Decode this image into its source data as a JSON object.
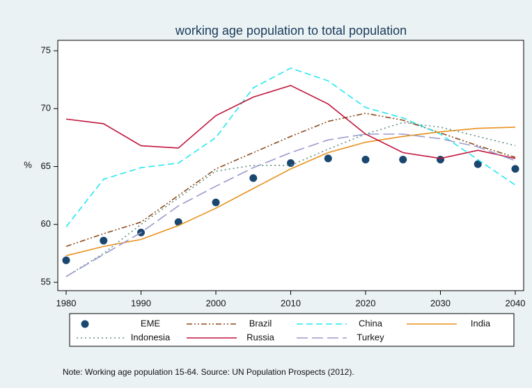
{
  "chart_data": {
    "type": "line",
    "title": "working age population to total population",
    "y_label": "%",
    "note": "Note: Working age population 15-64. Source: UN Population Prospects (2012).",
    "x": [
      1980,
      1985,
      1990,
      1995,
      2000,
      2005,
      2010,
      2015,
      2020,
      2025,
      2030,
      2035,
      2040
    ],
    "xlim": [
      1980,
      2040
    ],
    "xticks": [
      1980,
      1990,
      2000,
      2010,
      2020,
      2030,
      2040
    ],
    "ylim": [
      55,
      75
    ],
    "yticks": [
      55,
      60,
      65,
      70,
      75
    ],
    "grid": true,
    "legend": "bottom",
    "series": [
      {
        "name": "EME",
        "color": "#1a476f",
        "style": "markers",
        "values": [
          56.9,
          58.6,
          59.3,
          60.2,
          61.9,
          64.0,
          65.3,
          65.7,
          65.6,
          65.6,
          65.6,
          65.2,
          64.8
        ]
      },
      {
        "name": "Brazil",
        "color": "#8b4a1c",
        "style": "dashdotdot",
        "values": [
          58.1,
          59.2,
          60.2,
          62.5,
          64.8,
          66.2,
          67.6,
          68.9,
          69.6,
          69.0,
          67.9,
          66.8,
          65.8
        ]
      },
      {
        "name": "China",
        "color": "#22e8f0",
        "style": "dash",
        "values": [
          59.8,
          63.9,
          64.9,
          65.3,
          67.5,
          71.8,
          73.5,
          72.4,
          70.1,
          69.2,
          67.8,
          65.6,
          63.4
        ]
      },
      {
        "name": "India",
        "color": "#e8901c",
        "style": "solid",
        "values": [
          57.3,
          58.1,
          58.7,
          59.9,
          61.4,
          63.1,
          64.8,
          66.2,
          67.1,
          67.6,
          68.0,
          68.3,
          68.4
        ]
      },
      {
        "name": "Indonesia",
        "color": "#5f8f7f",
        "style": "dot",
        "values": [
          55.5,
          57.5,
          60.0,
          62.3,
          64.6,
          65.1,
          65.1,
          66.5,
          67.8,
          68.8,
          68.4,
          67.6,
          66.8
        ]
      },
      {
        "name": "Russia",
        "color": "#c0143c",
        "style": "solid",
        "values": [
          69.1,
          68.7,
          66.8,
          66.6,
          69.4,
          71.0,
          72.0,
          70.4,
          67.8,
          66.2,
          65.7,
          66.4,
          65.7
        ]
      },
      {
        "name": "Turkey",
        "color": "#9a9acd",
        "style": "longdash",
        "values": [
          55.5,
          57.4,
          59.3,
          61.6,
          63.3,
          64.9,
          66.2,
          67.3,
          67.8,
          67.8,
          67.4,
          66.7,
          65.5
        ]
      }
    ]
  }
}
